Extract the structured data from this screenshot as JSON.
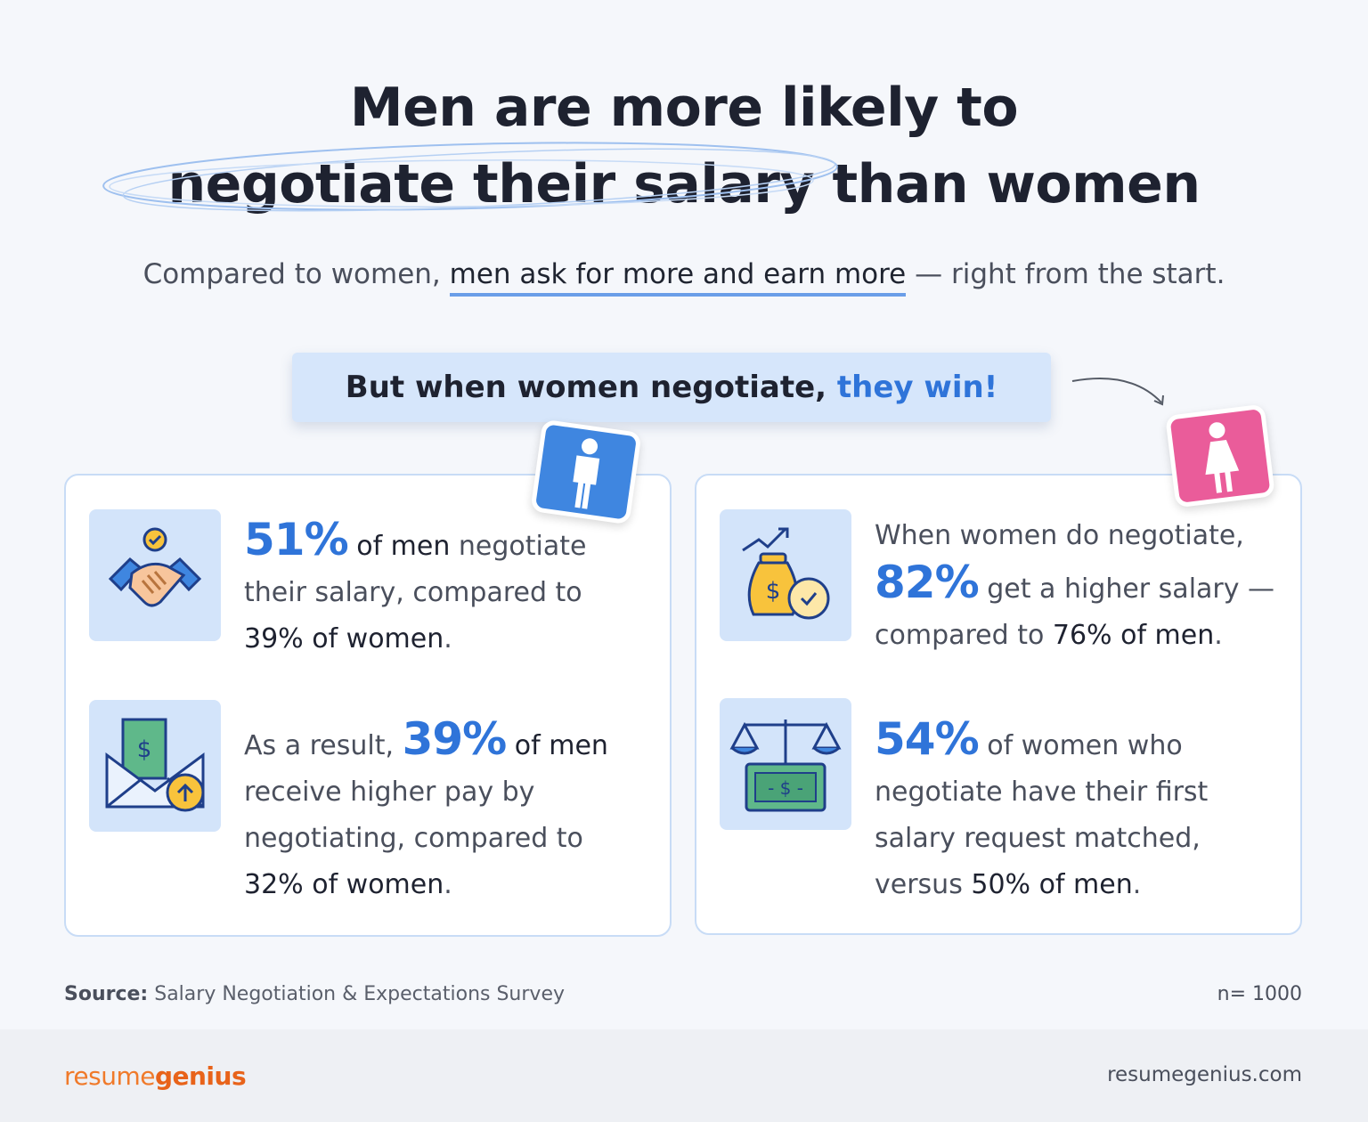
{
  "title": {
    "line1": "Men are more likely to",
    "line2": "negotiate their salary than women"
  },
  "subtitle": {
    "before": "Compared to women, ",
    "highlight": "men ask for more and earn more",
    "after": " — right from the start."
  },
  "banner": {
    "text": "But when women negotiate, ",
    "accent": "they win!"
  },
  "men_card": {
    "stat1": {
      "big": "51%",
      "mid": " of men",
      "rest": " negotiate their salary, compared to ",
      "tail": "39% of women",
      "end": "."
    },
    "stat2": {
      "lead": "As a result, ",
      "big": "39%",
      "mid": " of men",
      "rest": " receive higher pay by negotiating, compared to ",
      "tail": "32% of women",
      "end": "."
    }
  },
  "women_card": {
    "stat1": {
      "lead": "When women do negotiate, ",
      "big": "82%",
      "rest": " get a higher salary — compared to ",
      "tail": "76% of men",
      "end": "."
    },
    "stat2": {
      "big": "54%",
      "rest": " of women who negotiate have their first salary request matched, versus ",
      "tail": "50% of men",
      "end": "."
    }
  },
  "source": {
    "label": "Source:",
    "text": " Salary Negotiation & Expectations Survey",
    "n": "n= 1000"
  },
  "footer": {
    "logo_part1": "resume",
    "logo_part2": "genius",
    "site": "resumegenius.com"
  },
  "colors": {
    "accent_blue": "#2f74d9",
    "men_badge": "#3f86e0",
    "women_badge": "#ea5c9a",
    "brand_orange": "#e8631a"
  },
  "icons": [
    "man-icon",
    "woman-icon",
    "handshake-icon",
    "envelope-money-icon",
    "money-bag-icon",
    "scale-money-icon"
  ]
}
